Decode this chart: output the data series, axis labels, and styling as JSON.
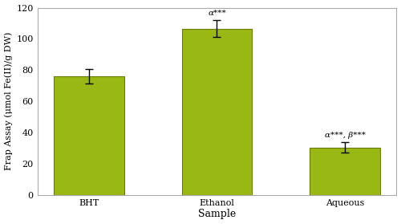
{
  "categories": [
    "BHT",
    "Ethanol",
    "Aqueous"
  ],
  "values": [
    76.0,
    106.5,
    30.5
  ],
  "errors": [
    4.5,
    5.5,
    3.5
  ],
  "bar_color": "#9ab813",
  "bar_edge_color": "#6b7a00",
  "ylabel": "Frap Assay (μmol Fe(II)/g DW)",
  "xlabel": "Sample",
  "ylim": [
    0,
    120
  ],
  "yticks": [
    0,
    20,
    40,
    60,
    80,
    100,
    120
  ],
  "annotations": [
    {
      "text": "α***",
      "bar_index": 1
    },
    {
      "text": "α***, β***",
      "bar_index": 2
    }
  ],
  "background_color": "#ffffff",
  "annot_fontsize": 7.5,
  "axis_fontsize": 8,
  "tick_fontsize": 8,
  "xlabel_fontsize": 9,
  "bar_width": 0.55
}
